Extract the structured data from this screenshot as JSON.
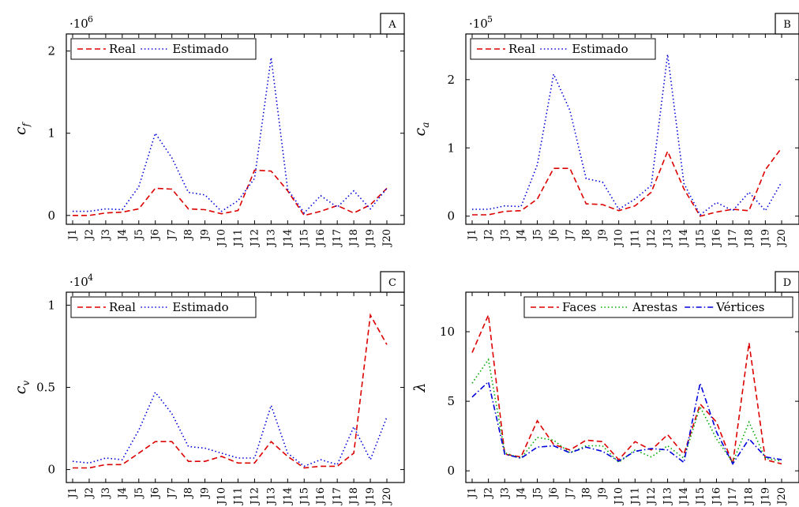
{
  "chart_data": [
    {
      "type": "line",
      "panel_label": "A",
      "ylabel": "c",
      "ylabel_sub": "f",
      "multiplier_base": "·10",
      "multiplier_exp": "6",
      "categories": [
        "J1",
        "J2",
        "J3",
        "J4",
        "J5",
        "J6",
        "J7",
        "J8",
        "J9",
        "J10",
        "J11",
        "J12",
        "J13",
        "J14",
        "J15",
        "J16",
        "J17",
        "J18",
        "J19",
        "J20"
      ],
      "yticks": [
        {
          "value": 0,
          "label": "0"
        },
        {
          "value": 1,
          "label": "1"
        },
        {
          "value": 2,
          "label": "2"
        }
      ],
      "ylim": [
        -0.05,
        2.15
      ],
      "legend_position": "top-left",
      "series": [
        {
          "name": "Real",
          "color": "#dd0000",
          "dash": "dashed",
          "values": [
            0.0,
            0.0,
            0.03,
            0.04,
            0.08,
            0.33,
            0.32,
            0.08,
            0.07,
            0.02,
            0.06,
            0.55,
            0.54,
            0.3,
            0.0,
            0.05,
            0.12,
            0.03,
            0.13,
            0.33
          ]
        },
        {
          "name": "Estimado",
          "color": "#0000dd",
          "dash": "dotted",
          "values": [
            0.05,
            0.05,
            0.08,
            0.07,
            0.35,
            1.0,
            0.7,
            0.28,
            0.25,
            0.05,
            0.18,
            0.45,
            1.92,
            0.32,
            0.03,
            0.24,
            0.1,
            0.3,
            0.08,
            0.33
          ]
        }
      ]
    },
    {
      "type": "line",
      "panel_label": "B",
      "ylabel": "c",
      "ylabel_sub": "a",
      "multiplier_base": "·10",
      "multiplier_exp": "5",
      "categories": [
        "J1",
        "J2",
        "J3",
        "J4",
        "J5",
        "J6",
        "J7",
        "J8",
        "J9",
        "J10",
        "J11",
        "J12",
        "J13",
        "J14",
        "J15",
        "J16",
        "J17",
        "J18",
        "J19",
        "J20"
      ],
      "yticks": [
        {
          "value": 0,
          "label": "0"
        },
        {
          "value": 1,
          "label": "1"
        },
        {
          "value": 2,
          "label": "2"
        }
      ],
      "ylim": [
        -0.05,
        2.6
      ],
      "legend_position": "top-left",
      "series": [
        {
          "name": "Real",
          "color": "#dd0000",
          "dash": "dashed",
          "values": [
            0.02,
            0.02,
            0.07,
            0.08,
            0.25,
            0.7,
            0.7,
            0.18,
            0.17,
            0.08,
            0.15,
            0.35,
            0.95,
            0.4,
            0.0,
            0.06,
            0.1,
            0.08,
            0.68,
            1.0
          ]
        },
        {
          "name": "Estimado",
          "color": "#0000dd",
          "dash": "dotted",
          "values": [
            0.1,
            0.1,
            0.15,
            0.14,
            0.75,
            2.08,
            1.55,
            0.55,
            0.5,
            0.1,
            0.25,
            0.45,
            2.37,
            0.48,
            0.02,
            0.2,
            0.08,
            0.35,
            0.08,
            0.5
          ]
        }
      ]
    },
    {
      "type": "line",
      "panel_label": "C",
      "ylabel": "c",
      "ylabel_sub": "v",
      "multiplier_base": "·10",
      "multiplier_exp": "4",
      "categories": [
        "J1",
        "J2",
        "J3",
        "J4",
        "J5",
        "J6",
        "J7",
        "J8",
        "J9",
        "J10",
        "J11",
        "J12",
        "J13",
        "J14",
        "J15",
        "J16",
        "J17",
        "J18",
        "J19",
        "J20"
      ],
      "yticks": [
        {
          "value": 0,
          "label": "0"
        },
        {
          "value": 0.5,
          "label": "0.5"
        },
        {
          "value": 1,
          "label": "1"
        }
      ],
      "ylim": [
        -0.05,
        1.05
      ],
      "legend_position": "top-left",
      "series": [
        {
          "name": "Real",
          "color": "#dd0000",
          "dash": "dashed",
          "values": [
            0.01,
            0.01,
            0.03,
            0.03,
            0.1,
            0.17,
            0.17,
            0.05,
            0.05,
            0.08,
            0.04,
            0.04,
            0.17,
            0.08,
            0.01,
            0.02,
            0.02,
            0.1,
            0.94,
            0.76
          ]
        },
        {
          "name": "Estimado",
          "color": "#0000dd",
          "dash": "dotted",
          "values": [
            0.05,
            0.04,
            0.07,
            0.06,
            0.24,
            0.47,
            0.34,
            0.14,
            0.13,
            0.1,
            0.07,
            0.07,
            0.39,
            0.1,
            0.02,
            0.06,
            0.03,
            0.26,
            0.06,
            0.32
          ]
        }
      ]
    },
    {
      "type": "line",
      "panel_label": "D",
      "ylabel": "λ",
      "ylabel_sub": "",
      "categories": [
        "J1",
        "J2",
        "J3",
        "J4",
        "J5",
        "J6",
        "J7",
        "J8",
        "J9",
        "J10",
        "J11",
        "J12",
        "J13",
        "J14",
        "J15",
        "J16",
        "J17",
        "J18",
        "J19",
        "J20"
      ],
      "yticks": [
        {
          "value": 0,
          "label": "0"
        },
        {
          "value": 5,
          "label": "5"
        },
        {
          "value": 10,
          "label": "10"
        }
      ],
      "ylim": [
        -0.5,
        12.5
      ],
      "legend_position": "top-right",
      "series": [
        {
          "name": "Faces",
          "color": "#dd0000",
          "dash": "dashed",
          "values": [
            8.5,
            11.2,
            1.2,
            1.0,
            3.6,
            1.9,
            1.5,
            2.2,
            2.1,
            0.8,
            2.1,
            1.5,
            2.6,
            1.2,
            4.8,
            3.5,
            0.5,
            9.2,
            0.8,
            0.5
          ]
        },
        {
          "name": "Arestas",
          "color": "#00aa00",
          "dash": "dotted",
          "values": [
            6.3,
            8.0,
            1.3,
            0.9,
            2.4,
            2.2,
            1.3,
            1.8,
            1.8,
            0.6,
            1.5,
            1.0,
            1.8,
            0.9,
            4.6,
            2.3,
            0.6,
            3.5,
            0.9,
            0.7
          ]
        },
        {
          "name": "Vértices",
          "color": "#0000dd",
          "dash": "dashdot",
          "values": [
            5.3,
            6.4,
            1.2,
            0.9,
            1.7,
            1.8,
            1.3,
            1.7,
            1.4,
            0.7,
            1.4,
            1.6,
            1.5,
            0.6,
            6.3,
            2.8,
            0.5,
            2.3,
            1.0,
            0.8
          ]
        }
      ]
    }
  ]
}
